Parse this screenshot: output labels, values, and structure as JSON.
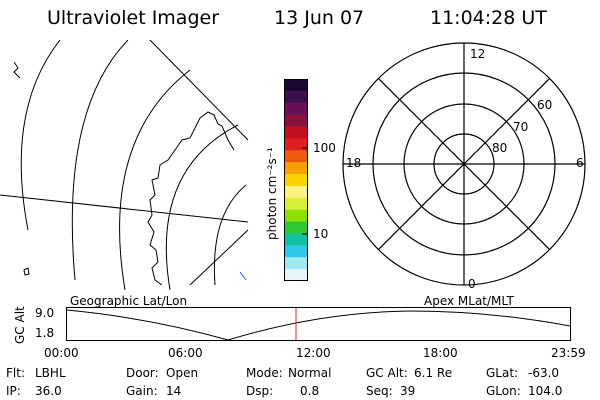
{
  "header": {
    "title": "Ultraviolet Imager",
    "date": "13 Jun 07",
    "time": "11:04:28 UT"
  },
  "colorbar": {
    "unit_label": "photon cm⁻²s⁻¹",
    "ticks": [
      "100",
      "10"
    ],
    "colors": [
      "#1a0730",
      "#3a0f4e",
      "#66105a",
      "#8a1040",
      "#c01020",
      "#e02020",
      "#f05a10",
      "#f5a000",
      "#f8d200",
      "#fff08a",
      "#d8f03a",
      "#8ce000",
      "#30c830",
      "#10c0a0",
      "#30c8e8",
      "#a0e8f0",
      "#e4f4f8"
    ]
  },
  "geo_panel": {
    "label": "Geographic Lat/Lon"
  },
  "polar_panel": {
    "label": "Apex MLat/MLT",
    "mlt_labels": {
      "top": "12",
      "left": "18",
      "right": "6",
      "bottom": "0"
    },
    "lat_labels": [
      "60",
      "70",
      "80"
    ]
  },
  "timeline": {
    "y_label": "GC Alt",
    "y_ticks": [
      "9.0",
      "1.8"
    ],
    "x_ticks": [
      "00:00",
      "06:00",
      "12:00",
      "18:00",
      "23:59"
    ],
    "marker_color": "#e02020"
  },
  "status": {
    "row1": [
      {
        "label": "Flt:",
        "value": "LBHL"
      },
      {
        "label": "Door:",
        "value": "Open"
      },
      {
        "label": "Mode:",
        "value": "Normal"
      },
      {
        "label": "GC Alt:",
        "value": "6.1 Re"
      },
      {
        "label": "GLat:",
        "value": "-63.0"
      }
    ],
    "row2": [
      {
        "label": "IP:",
        "value": "36.0"
      },
      {
        "label": "Gain:",
        "value": "14"
      },
      {
        "label": "Dsp:",
        "value": "0.8"
      },
      {
        "label": "Seq:",
        "value": "39"
      },
      {
        "label": "GLon:",
        "value": "104.0"
      }
    ]
  }
}
